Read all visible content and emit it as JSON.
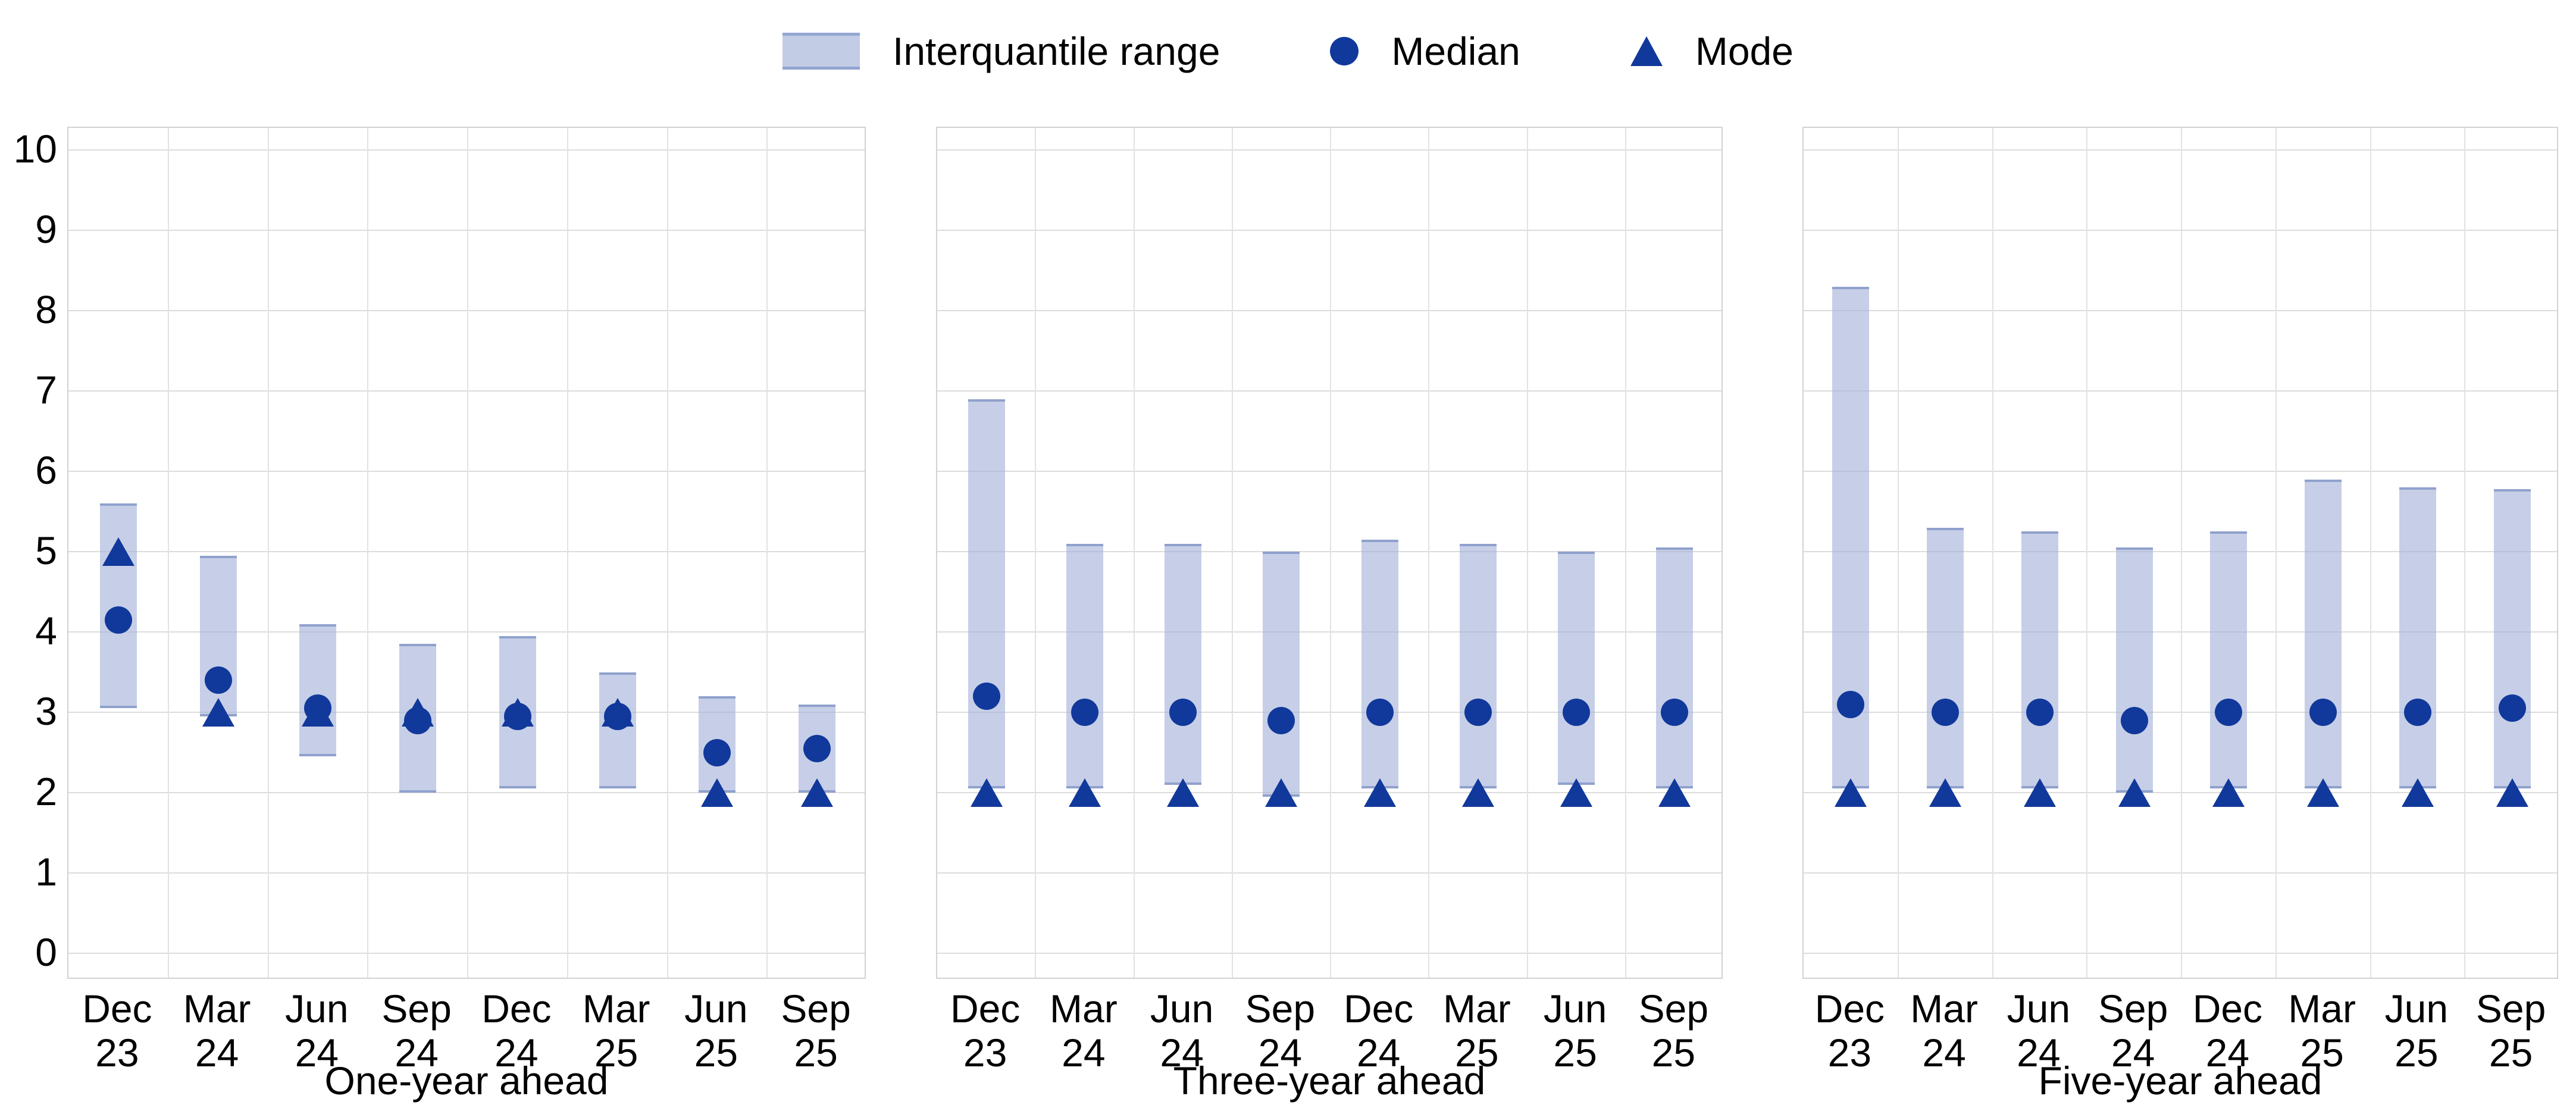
{
  "legend": {
    "items": [
      {
        "label": "Interquantile range",
        "marker": "bar-swatch"
      },
      {
        "label": "Median",
        "marker": "circle"
      },
      {
        "label": "Mode",
        "marker": "triangle"
      }
    ]
  },
  "colors": {
    "bar_fill": "#c2cce4",
    "bar_edge": "#93a6d2",
    "marker_blue": "#11389b",
    "gridline": "#dcdcdc",
    "panel_border": "#d2d2d2",
    "text": "#000000"
  },
  "y_axis": {
    "min": 0,
    "max": 10,
    "ticks": [
      0,
      1,
      2,
      3,
      4,
      5,
      6,
      7,
      8,
      9,
      10
    ]
  },
  "chart_data": [
    {
      "type": "bar",
      "xlabel": "One-year ahead",
      "ylabel": "",
      "ylim": [
        0,
        10
      ],
      "grid": true,
      "legend_position": "top",
      "categories": [
        [
          "Dec",
          "23"
        ],
        [
          "Mar",
          "24"
        ],
        [
          "Jun",
          "24"
        ],
        [
          "Sep",
          "24"
        ],
        [
          "Dec",
          "24"
        ],
        [
          "Mar",
          "25"
        ],
        [
          "Jun",
          "25"
        ],
        [
          "Sep",
          "25"
        ]
      ],
      "series": [
        {
          "name": "Interquantile range low",
          "values": [
            3.05,
            2.95,
            2.45,
            2.0,
            2.05,
            2.05,
            2.0,
            2.0
          ]
        },
        {
          "name": "Interquantile range high",
          "values": [
            5.6,
            4.95,
            4.1,
            3.85,
            3.95,
            3.5,
            3.2,
            3.1
          ]
        },
        {
          "name": "Median",
          "values": [
            4.15,
            3.4,
            3.05,
            2.9,
            2.95,
            2.95,
            2.5,
            2.55
          ]
        },
        {
          "name": "Mode",
          "values": [
            5.0,
            3.0,
            3.0,
            3.0,
            3.0,
            3.0,
            2.0,
            2.0
          ]
        }
      ]
    },
    {
      "type": "bar",
      "xlabel": "Three-year ahead",
      "ylabel": "",
      "ylim": [
        0,
        10
      ],
      "grid": true,
      "legend_position": "top",
      "categories": [
        [
          "Dec",
          "23"
        ],
        [
          "Mar",
          "24"
        ],
        [
          "Jun",
          "24"
        ],
        [
          "Sep",
          "24"
        ],
        [
          "Dec",
          "24"
        ],
        [
          "Mar",
          "25"
        ],
        [
          "Jun",
          "25"
        ],
        [
          "Sep",
          "25"
        ]
      ],
      "series": [
        {
          "name": "Interquantile range low",
          "values": [
            2.05,
            2.05,
            2.1,
            1.95,
            2.05,
            2.05,
            2.1,
            2.05
          ]
        },
        {
          "name": "Interquantile range high",
          "values": [
            6.9,
            5.1,
            5.1,
            5.0,
            5.15,
            5.1,
            5.0,
            5.05
          ]
        },
        {
          "name": "Median",
          "values": [
            3.2,
            3.0,
            3.0,
            2.9,
            3.0,
            3.0,
            3.0,
            3.0
          ]
        },
        {
          "name": "Mode",
          "values": [
            2.0,
            2.0,
            2.0,
            2.0,
            2.0,
            2.0,
            2.0,
            2.0
          ]
        }
      ]
    },
    {
      "type": "bar",
      "xlabel": "Five-year ahead",
      "ylabel": "",
      "ylim": [
        0,
        10
      ],
      "grid": true,
      "legend_position": "top",
      "categories": [
        [
          "Dec",
          "23"
        ],
        [
          "Mar",
          "24"
        ],
        [
          "Jun",
          "24"
        ],
        [
          "Sep",
          "24"
        ],
        [
          "Dec",
          "24"
        ],
        [
          "Mar",
          "25"
        ],
        [
          "Jun",
          "25"
        ],
        [
          "Sep",
          "25"
        ]
      ],
      "series": [
        {
          "name": "Interquantile range low",
          "values": [
            2.05,
            2.05,
            2.05,
            2.0,
            2.05,
            2.05,
            2.05,
            2.05
          ]
        },
        {
          "name": "Interquantile range high",
          "values": [
            8.3,
            5.3,
            5.25,
            5.05,
            5.25,
            5.9,
            5.8,
            5.78
          ]
        },
        {
          "name": "Median",
          "values": [
            3.1,
            3.0,
            3.0,
            2.9,
            3.0,
            3.0,
            3.0,
            3.05
          ]
        },
        {
          "name": "Mode",
          "values": [
            2.0,
            2.0,
            2.0,
            2.0,
            2.0,
            2.0,
            2.0,
            2.0
          ]
        }
      ]
    }
  ]
}
